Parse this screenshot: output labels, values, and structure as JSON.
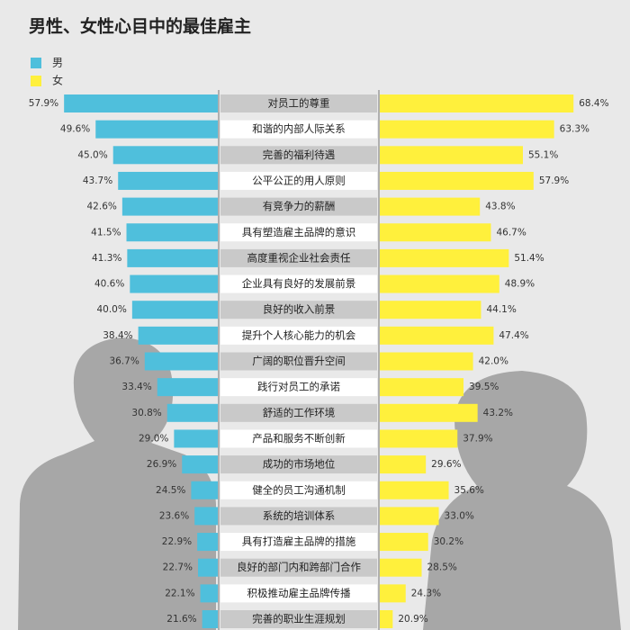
{
  "chart_data": {
    "type": "bar",
    "title": "男性、女性心目中的最佳雇主",
    "categories": [
      "对员工的尊重",
      "和谐的内部人际关系",
      "完善的福利待遇",
      "公平公正的用人原则",
      "有竞争力的薪酬",
      "具有塑造雇主品牌的意识",
      "高度重视企业社会责任",
      "企业具有良好的发展前景",
      "良好的收入前景",
      "提升个人核心能力的机会",
      "广阔的职位晋升空间",
      "践行对员工的承诺",
      "舒适的工作环境",
      "产品和服务不断创新",
      "成功的市场地位",
      "健全的员工沟通机制",
      "系统的培训体系",
      "具有打造雇主品牌的措施",
      "良好的部门内和跨部门合作",
      "积极推动雇主品牌传播",
      "完善的职业生涯规划"
    ],
    "series": [
      {
        "name": "男",
        "color": "#4fbfdc",
        "values": [
          57.9,
          49.6,
          45.0,
          43.7,
          42.6,
          41.5,
          41.3,
          40.6,
          40.0,
          38.4,
          36.7,
          33.4,
          30.8,
          29.0,
          26.9,
          24.5,
          23.6,
          22.9,
          22.7,
          22.1,
          21.6
        ],
        "value_labels": [
          "57.9%",
          "49.6%",
          "45.0%",
          "43.7%",
          "42.6%",
          "41.5%",
          "41.3%",
          "40.6%",
          "40.0%",
          "38.4%",
          "36.7%",
          "33.4%",
          "30.8%",
          "29.0%",
          "26.9%",
          "24.5%",
          "23.6%",
          "22.9%",
          "22.7%",
          "22.1%",
          "21.6%"
        ]
      },
      {
        "name": "女",
        "color": "#fff03c",
        "values": [
          68.4,
          63.3,
          55.1,
          57.9,
          43.8,
          46.7,
          51.4,
          48.9,
          44.1,
          47.4,
          42.0,
          39.5,
          43.2,
          37.9,
          29.6,
          35.6,
          33.0,
          30.2,
          28.5,
          24.3,
          20.9
        ],
        "value_labels": [
          "68.4%",
          "63.3%",
          "55.1%",
          "57.9%",
          "43.8%",
          "46.7%",
          "51.4%",
          "48.9%",
          "44.1%",
          "47.4%",
          "42.0%",
          "39.5%",
          "43.2%",
          "37.9%",
          "29.6%",
          "35.6%",
          "33.0%",
          "30.2%",
          "28.5%",
          "24.3%",
          "20.9%"
        ]
      }
    ],
    "xlim": [
      17.5,
      70
    ]
  }
}
